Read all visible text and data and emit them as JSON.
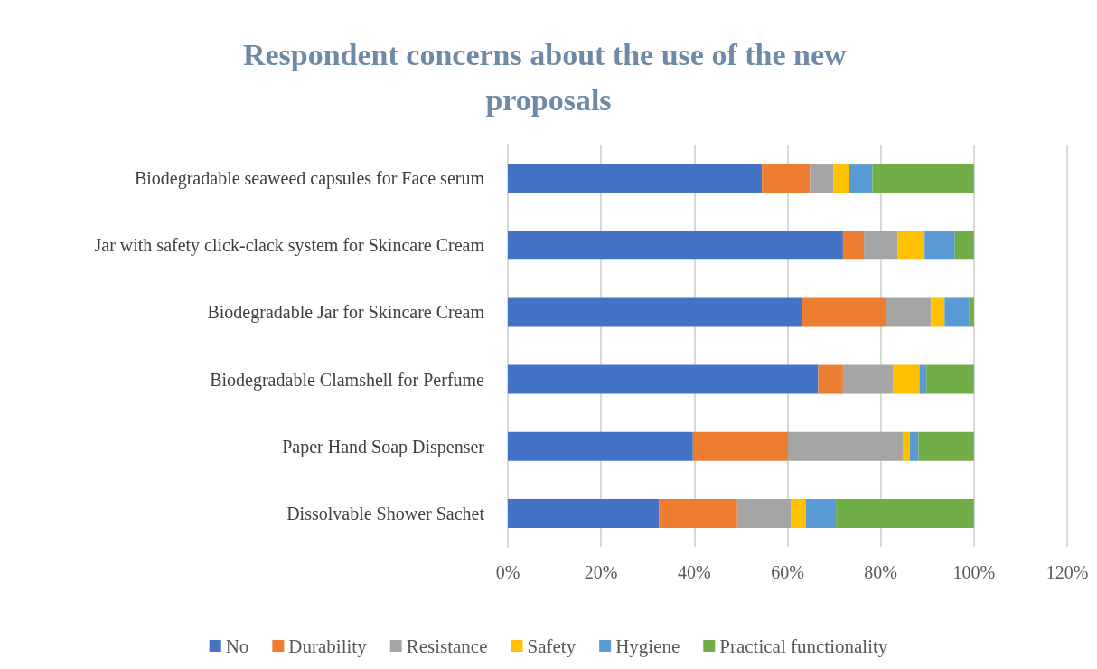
{
  "chart_data": {
    "type": "bar",
    "orientation": "horizontal",
    "stacked": true,
    "title": "Respondent concerns about the use of the new proposals",
    "categories": [
      "Biodegradable seaweed capsules for Face serum",
      "Jar with safety click-clack system for Skincare Cream",
      "Biodegradable Jar for Skincare Cream",
      "Biodegradable Clamshell for Perfume",
      "Paper Hand Soap Dispenser",
      "Dissolvable Shower Sachet"
    ],
    "series": [
      {
        "name": "No",
        "color": "#4472c4",
        "values": [
          54.5,
          71.9,
          63.1,
          66.6,
          39.7,
          32.4
        ]
      },
      {
        "name": "Durability",
        "color": "#ed7d31",
        "values": [
          10.3,
          4.5,
          18.1,
          5.3,
          20.4,
          16.8
        ]
      },
      {
        "name": "Resistance",
        "color": "#a5a5a5",
        "values": [
          5.1,
          7.2,
          9.6,
          10.7,
          24.6,
          11.6
        ]
      },
      {
        "name": "Safety",
        "color": "#ffc000",
        "values": [
          3.2,
          5.8,
          2.9,
          5.7,
          1.5,
          3.1
        ]
      },
      {
        "name": "Hygiene",
        "color": "#5b9bd5",
        "values": [
          5.1,
          6.5,
          5.2,
          1.5,
          1.9,
          6.5
        ]
      },
      {
        "name": "Practical functionality",
        "color": "#70ad47",
        "values": [
          21.8,
          4.1,
          1.1,
          10.2,
          11.9,
          29.6
        ]
      }
    ],
    "xlim": [
      0,
      120
    ],
    "xticks": [
      {
        "value": 0,
        "label": "0%"
      },
      {
        "value": 20,
        "label": "20%"
      },
      {
        "value": 40,
        "label": "40%"
      },
      {
        "value": 60,
        "label": "60%"
      },
      {
        "value": 80,
        "label": "80%"
      },
      {
        "value": 100,
        "label": "100%"
      },
      {
        "value": 120,
        "label": "120%"
      }
    ],
    "grid": "x",
    "legend": "bottom"
  }
}
